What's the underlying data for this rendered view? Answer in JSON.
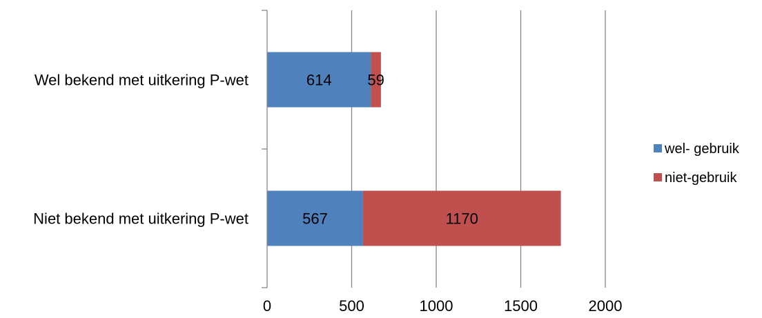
{
  "chart_data": {
    "type": "bar",
    "orientation": "horizontal",
    "stacked": true,
    "categories": [
      "Wel bekend met uitkering P-wet",
      "Niet bekend met uitkering P-wet"
    ],
    "series": [
      {
        "name": "wel- gebruik",
        "values": [
          614,
          567
        ],
        "color": "#4f81bd"
      },
      {
        "name": "niet-gebruik",
        "values": [
          59,
          1170
        ],
        "color": "#c0504d"
      }
    ],
    "xlim": [
      0,
      2000
    ],
    "xticks": [
      0,
      500,
      1000,
      1500,
      2000
    ],
    "grid": true,
    "legend": "right"
  }
}
